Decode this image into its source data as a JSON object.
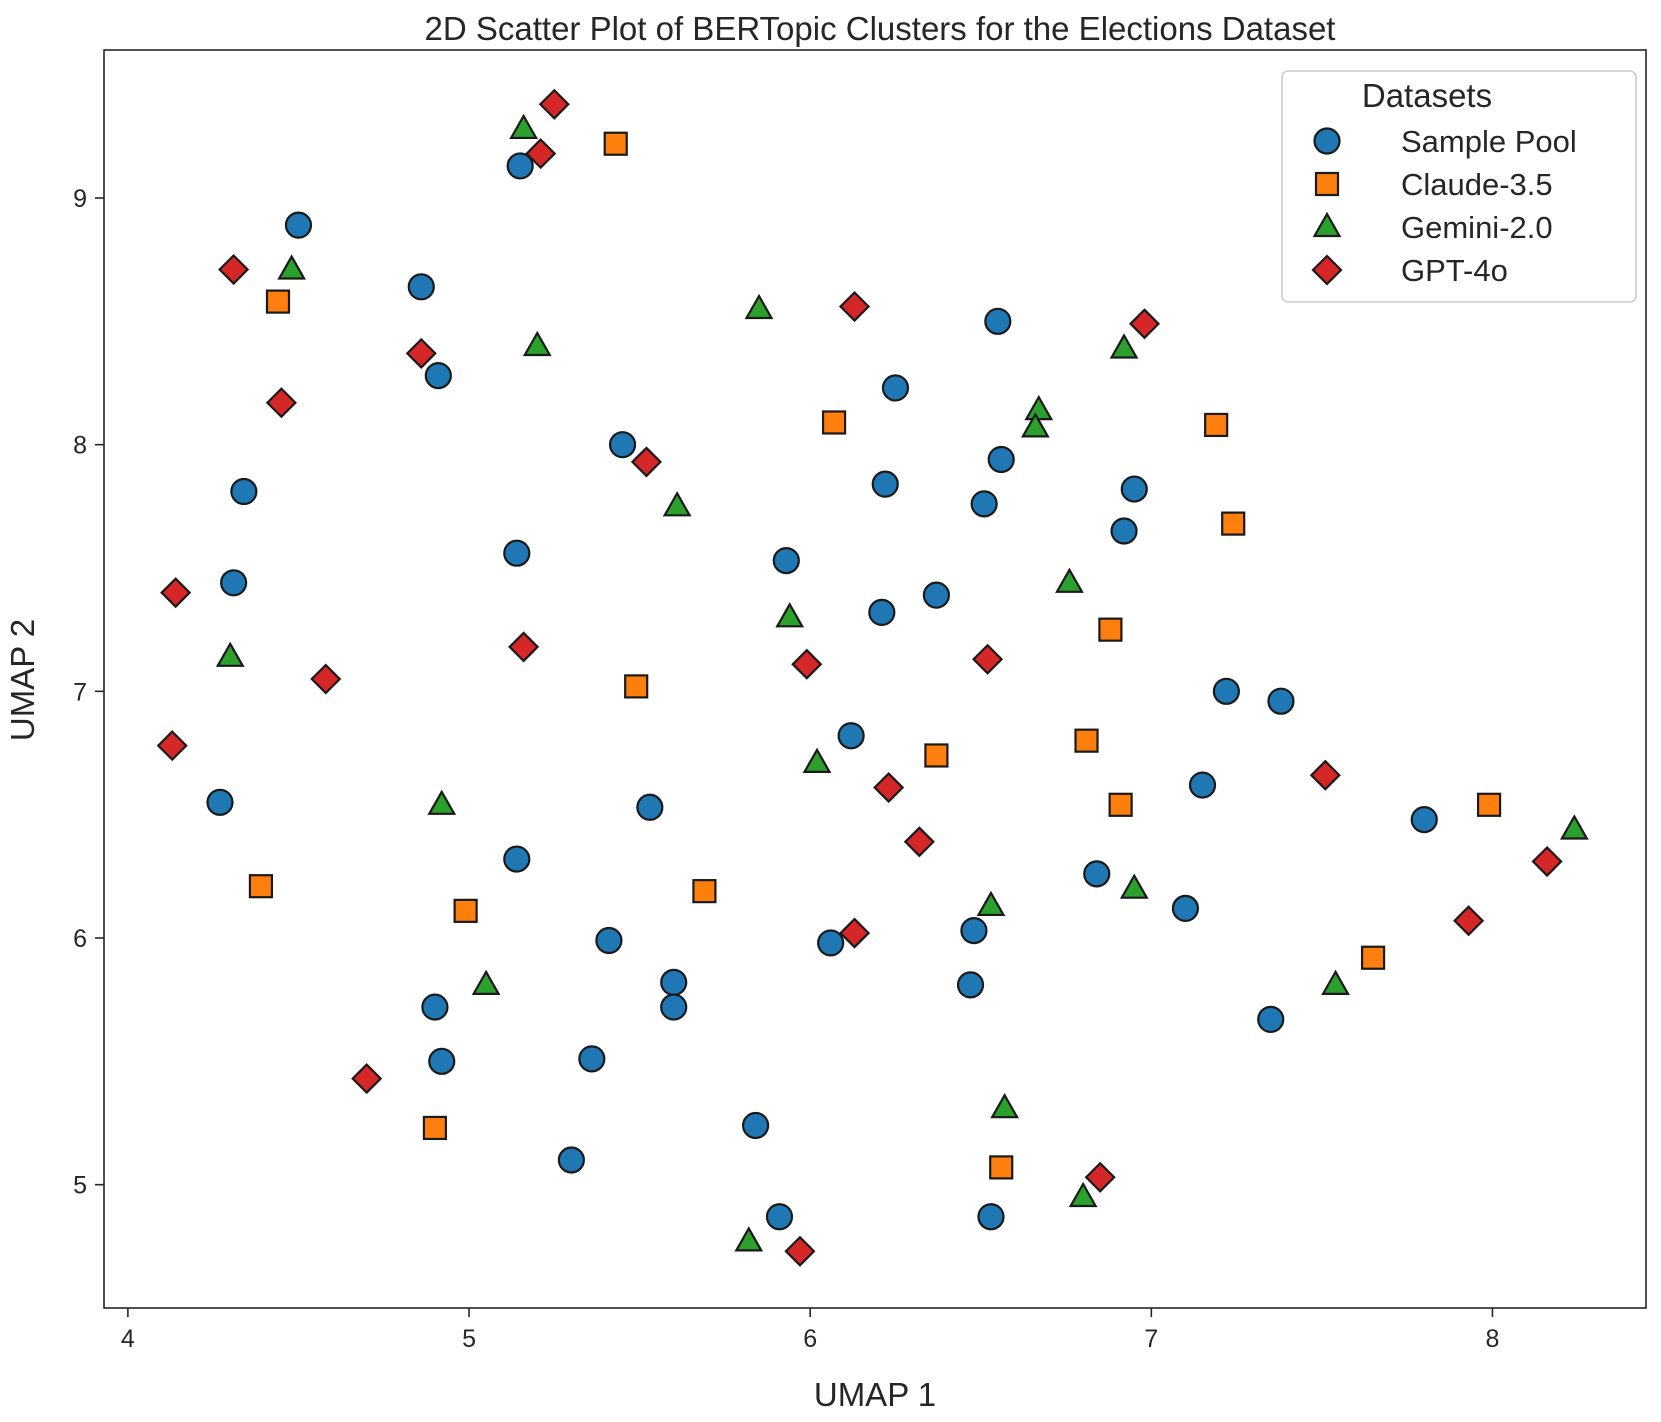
{
  "chart_data": {
    "type": "scatter",
    "title": "2D Scatter Plot of BERTopic Clusters for the Elections Dataset",
    "xlabel": "UMAP 1",
    "ylabel": "UMAP 2",
    "xlim": [
      3.93,
      8.45
    ],
    "ylim": [
      4.5,
      9.6
    ],
    "xticks": [
      4,
      5,
      6,
      7,
      8
    ],
    "yticks": [
      5,
      6,
      7,
      8,
      9
    ],
    "grid": false,
    "legend": {
      "title": "Datasets",
      "position": "top-right"
    },
    "series": [
      {
        "name": "Sample Pool",
        "marker": "circle",
        "color": "#1f77b4",
        "points": [
          [
            4.5,
            8.89
          ],
          [
            4.34,
            7.81
          ],
          [
            4.31,
            7.44
          ],
          [
            4.27,
            6.55
          ],
          [
            4.86,
            8.64
          ],
          [
            4.91,
            8.28
          ],
          [
            5.15,
            9.13
          ],
          [
            5.45,
            8.0
          ],
          [
            5.14,
            7.56
          ],
          [
            5.93,
            7.53
          ],
          [
            6.25,
            8.23
          ],
          [
            6.55,
            8.5
          ],
          [
            6.22,
            7.84
          ],
          [
            6.56,
            7.94
          ],
          [
            6.51,
            7.76
          ],
          [
            6.21,
            7.32
          ],
          [
            6.37,
            7.39
          ],
          [
            6.95,
            7.82
          ],
          [
            6.92,
            7.65
          ],
          [
            7.22,
            7.0
          ],
          [
            7.38,
            6.96
          ],
          [
            7.15,
            6.62
          ],
          [
            7.8,
            6.48
          ],
          [
            6.12,
            6.82
          ],
          [
            5.53,
            6.53
          ],
          [
            5.14,
            6.32
          ],
          [
            6.84,
            6.26
          ],
          [
            7.1,
            6.12
          ],
          [
            5.41,
            5.99
          ],
          [
            6.06,
            5.98
          ],
          [
            6.48,
            6.03
          ],
          [
            5.6,
            5.82
          ],
          [
            5.6,
            5.72
          ],
          [
            4.9,
            5.72
          ],
          [
            6.47,
            5.81
          ],
          [
            7.35,
            5.67
          ],
          [
            4.92,
            5.5
          ],
          [
            5.36,
            5.51
          ],
          [
            5.84,
            5.24
          ],
          [
            5.3,
            5.1
          ],
          [
            5.91,
            4.87
          ],
          [
            6.53,
            4.87
          ]
        ]
      },
      {
        "name": "Claude-3.5",
        "marker": "square",
        "color": "#ff7f0e",
        "points": [
          [
            5.43,
            9.22
          ],
          [
            4.44,
            8.58
          ],
          [
            6.07,
            8.09
          ],
          [
            7.19,
            8.08
          ],
          [
            7.24,
            7.68
          ],
          [
            6.88,
            7.25
          ],
          [
            5.49,
            7.02
          ],
          [
            6.37,
            6.74
          ],
          [
            6.81,
            6.8
          ],
          [
            6.91,
            6.54
          ],
          [
            7.99,
            6.54
          ],
          [
            4.39,
            6.21
          ],
          [
            5.69,
            6.19
          ],
          [
            4.99,
            6.11
          ],
          [
            7.65,
            5.92
          ],
          [
            4.9,
            5.23
          ],
          [
            6.56,
            5.07
          ]
        ]
      },
      {
        "name": "Gemini-2.0",
        "marker": "triangle",
        "color": "#2ca02c",
        "points": [
          [
            5.16,
            9.28
          ],
          [
            4.48,
            8.71
          ],
          [
            5.2,
            8.4
          ],
          [
            5.85,
            8.55
          ],
          [
            6.92,
            8.39
          ],
          [
            6.67,
            8.14
          ],
          [
            6.66,
            8.07
          ],
          [
            5.61,
            7.75
          ],
          [
            6.76,
            7.44
          ],
          [
            5.94,
            7.3
          ],
          [
            4.3,
            7.14
          ],
          [
            6.02,
            6.71
          ],
          [
            4.92,
            6.54
          ],
          [
            8.24,
            6.44
          ],
          [
            6.95,
            6.2
          ],
          [
            6.53,
            6.13
          ],
          [
            5.05,
            5.81
          ],
          [
            7.54,
            5.81
          ],
          [
            6.57,
            5.31
          ],
          [
            6.8,
            4.95
          ],
          [
            5.82,
            4.77
          ]
        ]
      },
      {
        "name": "GPT-4o",
        "marker": "diamond",
        "color": "#d62728",
        "points": [
          [
            5.25,
            9.38
          ],
          [
            5.21,
            9.18
          ],
          [
            4.31,
            8.71
          ],
          [
            6.13,
            8.56
          ],
          [
            6.98,
            8.49
          ],
          [
            4.86,
            8.37
          ],
          [
            4.45,
            8.17
          ],
          [
            5.52,
            7.93
          ],
          [
            4.14,
            7.4
          ],
          [
            5.16,
            7.18
          ],
          [
            6.52,
            7.13
          ],
          [
            5.99,
            7.11
          ],
          [
            4.58,
            7.05
          ],
          [
            4.13,
            6.78
          ],
          [
            7.51,
            6.66
          ],
          [
            6.23,
            6.61
          ],
          [
            6.32,
            6.39
          ],
          [
            8.16,
            6.31
          ],
          [
            7.93,
            6.07
          ],
          [
            6.13,
            6.02
          ],
          [
            4.7,
            5.43
          ],
          [
            6.85,
            5.03
          ],
          [
            5.97,
            4.73
          ]
        ]
      }
    ]
  }
}
